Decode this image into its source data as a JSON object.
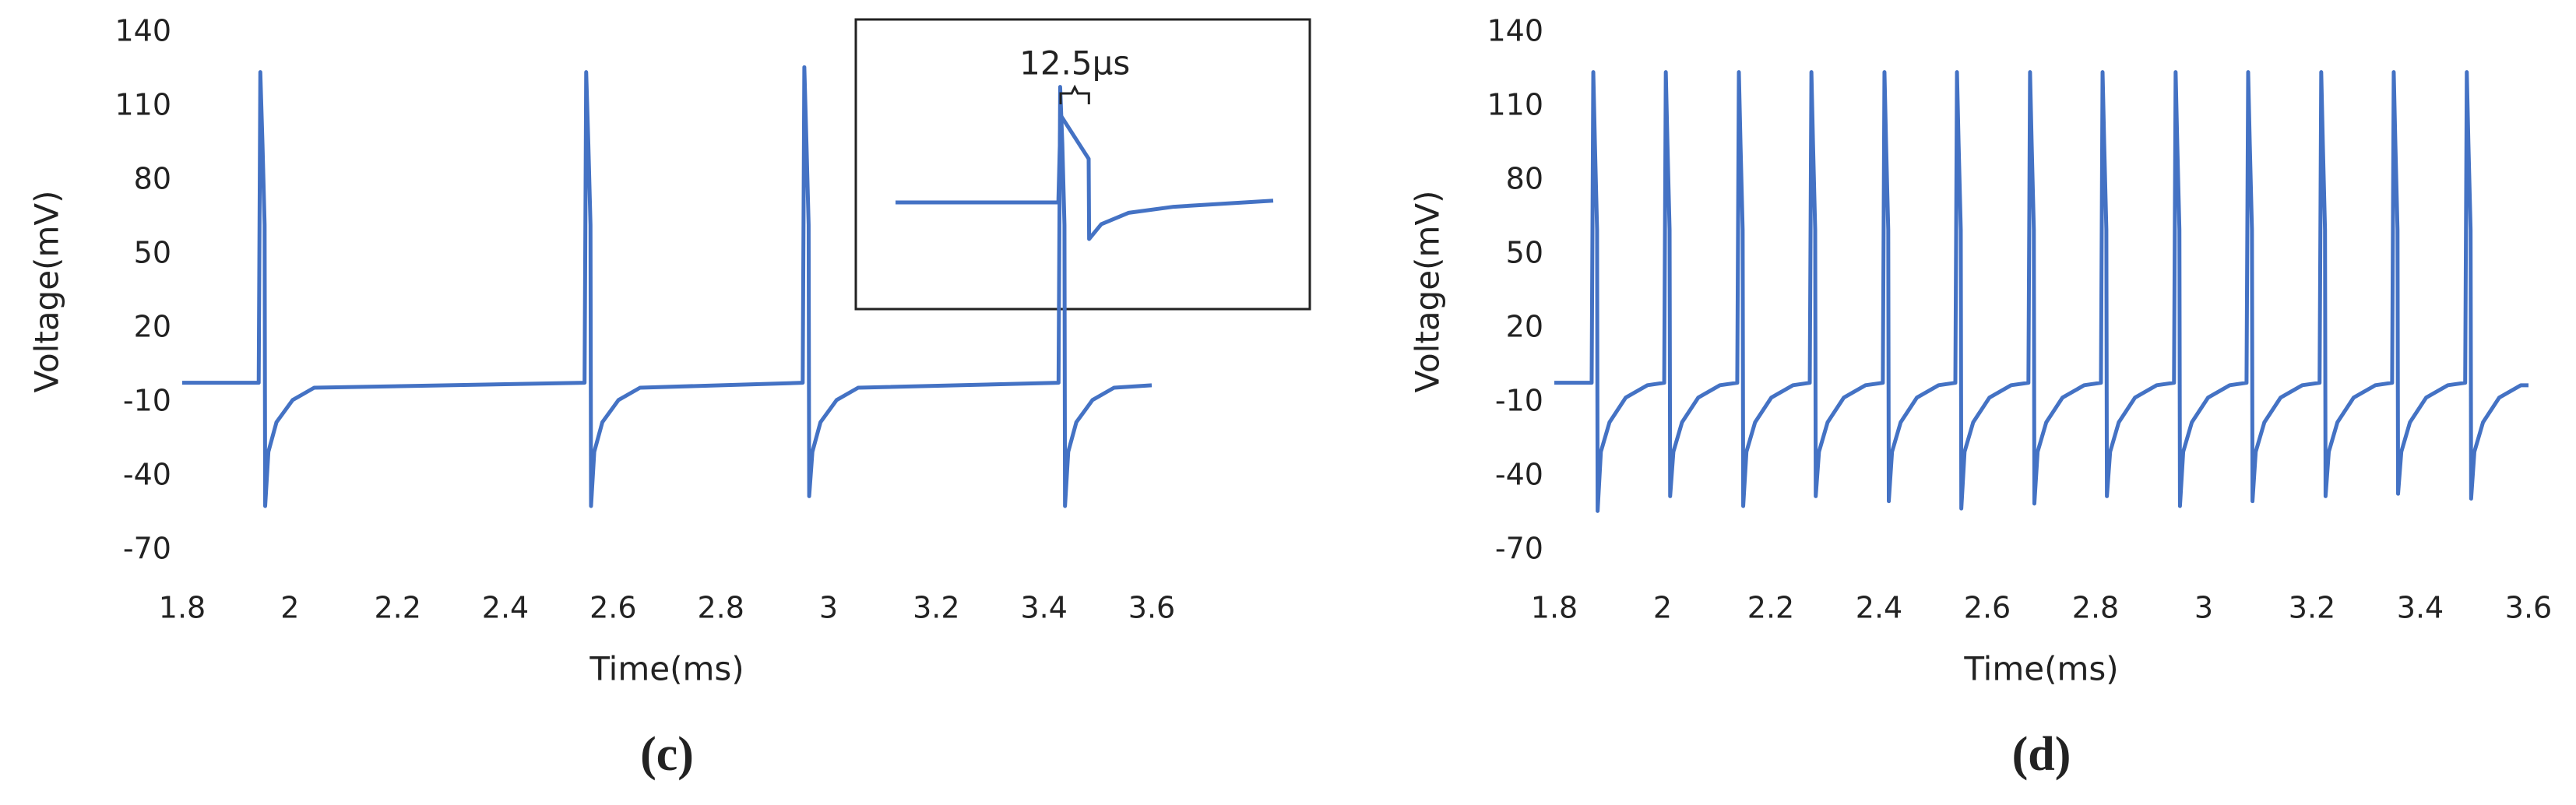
{
  "chart_data": [
    {
      "type": "line",
      "color": "#4472c4",
      "x_label": "Time(ms)",
      "y_label": "Voltage(mV)",
      "caption": "(c)",
      "xlim": [
        1.8,
        3.6
      ],
      "ylim": [
        -70,
        140
      ],
      "xticks": [
        1.8,
        2,
        2.2,
        2.4,
        2.6,
        2.8,
        3,
        3.2,
        3.4,
        3.6
      ],
      "yticks": [
        -70,
        -40,
        -10,
        20,
        50,
        80,
        110,
        140
      ],
      "x": [
        1.8,
        1.942,
        1.945,
        1.949,
        1.953,
        1.954,
        1.96,
        1.975,
        2.005,
        2.045,
        2.547,
        2.55,
        2.554,
        2.558,
        2.559,
        2.565,
        2.58,
        2.61,
        2.65,
        2.952,
        2.955,
        2.959,
        2.963,
        2.964,
        2.97,
        2.985,
        3.015,
        3.055,
        3.427,
        3.43,
        3.434,
        3.438,
        3.439,
        3.445,
        3.46,
        3.49,
        3.53,
        3.6
      ],
      "values": [
        -2,
        -2,
        124,
        95,
        62,
        -52,
        -30,
        -18,
        -9,
        -4,
        -2,
        124,
        95,
        62,
        -52,
        -30,
        -18,
        -9,
        -4,
        -2,
        126,
        95,
        62,
        -48,
        -30,
        -18,
        -9,
        -4,
        -2,
        118,
        95,
        62,
        -52,
        -30,
        -18,
        -9,
        -4,
        -3
      ]
    },
    {
      "type": "line",
      "color": "#4472c4",
      "annotation": {
        "text": "12.5μs",
        "x": [
          0,
          12.5
        ]
      },
      "x": [
        -73,
        -1,
        0,
        12.4,
        12.6,
        18,
        30,
        50,
        94
      ],
      "values": [
        0,
        0,
        1,
        0.5,
        -0.42,
        -0.25,
        -0.12,
        -0.05,
        0.02
      ]
    },
    {
      "type": "line",
      "color": "#4472c4",
      "x_label": "Time(ms)",
      "y_label": "Voltage(mV)",
      "caption": "(d)",
      "xlim": [
        1.8,
        3.6
      ],
      "ylim": [
        -70,
        140
      ],
      "xticks": [
        1.8,
        2,
        2.2,
        2.4,
        2.6,
        2.8,
        3,
        3.2,
        3.4,
        3.6
      ],
      "yticks": [
        -70,
        -40,
        -10,
        20,
        50,
        80,
        110,
        140
      ],
      "x": [
        1.8,
        1.869,
        1.872,
        1.875,
        1.879,
        1.88,
        1.886,
        1.902,
        1.932,
        1.972,
        2.003,
        2.006,
        2.009,
        2.013,
        2.014,
        2.02,
        2.036,
        2.066,
        2.106,
        2.138,
        2.141,
        2.144,
        2.148,
        2.149,
        2.155,
        2.171,
        2.201,
        2.241,
        2.272,
        2.275,
        2.278,
        2.282,
        2.283,
        2.289,
        2.305,
        2.335,
        2.375,
        2.407,
        2.41,
        2.413,
        2.417,
        2.418,
        2.424,
        2.44,
        2.47,
        2.51,
        2.541,
        2.544,
        2.547,
        2.551,
        2.552,
        2.558,
        2.574,
        2.604,
        2.644,
        2.676,
        2.679,
        2.682,
        2.686,
        2.687,
        2.693,
        2.709,
        2.739,
        2.779,
        2.81,
        2.813,
        2.816,
        2.82,
        2.821,
        2.827,
        2.843,
        2.873,
        2.913,
        2.945,
        2.948,
        2.951,
        2.955,
        2.956,
        2.962,
        2.978,
        3.008,
        3.048,
        3.079,
        3.082,
        3.085,
        3.089,
        3.09,
        3.096,
        3.112,
        3.142,
        3.182,
        3.214,
        3.217,
        3.22,
        3.224,
        3.225,
        3.231,
        3.247,
        3.277,
        3.317,
        3.348,
        3.351,
        3.354,
        3.358,
        3.359,
        3.365,
        3.381,
        3.411,
        3.451,
        3.483,
        3.486,
        3.489,
        3.493,
        3.494,
        3.5,
        3.516,
        3.546,
        3.586,
        3.6
      ],
      "values": [
        -2,
        -2,
        124,
        95,
        60,
        -54,
        -30,
        -18,
        -8,
        -3,
        -2,
        124,
        95,
        60,
        -48,
        -30,
        -18,
        -8,
        -3,
        -2,
        124,
        95,
        60,
        -52,
        -30,
        -18,
        -8,
        -3,
        -2,
        124,
        95,
        60,
        -48,
        -30,
        -18,
        -8,
        -3,
        -2,
        124,
        95,
        60,
        -50,
        -30,
        -18,
        -8,
        -3,
        -2,
        124,
        95,
        60,
        -53,
        -30,
        -18,
        -8,
        -3,
        -2,
        124,
        95,
        60,
        -51,
        -30,
        -18,
        -8,
        -3,
        -2,
        124,
        95,
        60,
        -48,
        -30,
        -18,
        -8,
        -3,
        -2,
        124,
        95,
        60,
        -52,
        -30,
        -18,
        -8,
        -3,
        -2,
        124,
        95,
        60,
        -50,
        -30,
        -18,
        -8,
        -3,
        -2,
        124,
        95,
        60,
        -48,
        -30,
        -18,
        -8,
        -3,
        -2,
        124,
        95,
        60,
        -47,
        -30,
        -18,
        -8,
        -3,
        -2,
        124,
        95,
        60,
        -49,
        -30,
        -18,
        -8,
        -3,
        -3
      ]
    }
  ]
}
